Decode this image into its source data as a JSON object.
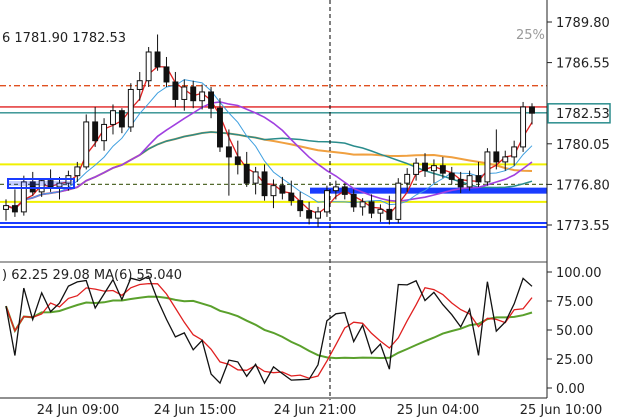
{
  "chart_data": [
    {
      "type": "candlestick",
      "title": "",
      "price_labels": [
        "1789.80",
        "1786.55",
        "1780.05",
        "1776.80",
        "1773.55"
      ],
      "price_values": [
        1789.8,
        1786.55,
        1780.05,
        1776.8,
        1773.55
      ],
      "ylim": [
        1772.6,
        1791.0
      ],
      "current_price": "1782.53",
      "current_price_value": 1782.53,
      "header_text": "6 1781.90 1782.53",
      "zoom_text": "25%",
      "x_labels": [
        "24 Jun 09:00",
        "24 Jun 15:00",
        "24 Jun 21:00",
        "25 Jun 04:00",
        "25 Jun 10:00"
      ],
      "bar_count": 60,
      "horizontal_lines": [
        {
          "value": 1783.0,
          "color": "#e02020",
          "style": "solid"
        },
        {
          "value": 1784.7,
          "color": "#e05020",
          "style": "dashdot"
        },
        {
          "value": 1782.53,
          "color": "#2a8c8c",
          "style": "solid"
        },
        {
          "value": 1778.4,
          "color": "#f0f000",
          "style": "solid"
        },
        {
          "value": 1776.8,
          "color": "#556b2f",
          "style": "dashed"
        },
        {
          "value": 1775.4,
          "color": "#f0f000",
          "style": "solid"
        },
        {
          "value": 1773.55,
          "color": "#1a3cff",
          "style": "double"
        }
      ],
      "ohlc": [
        [
          1774.8,
          1775.6,
          1773.9,
          1775.1
        ],
        [
          1775.1,
          1776.4,
          1774.2,
          1774.6
        ],
        [
          1774.6,
          1777.5,
          1774.3,
          1777.0
        ],
        [
          1777.0,
          1777.8,
          1775.9,
          1776.2
        ],
        [
          1776.2,
          1777.3,
          1775.8,
          1777.1
        ],
        [
          1777.1,
          1778.0,
          1776.2,
          1776.6
        ],
        [
          1776.6,
          1777.4,
          1775.6,
          1776.9
        ],
        [
          1776.9,
          1777.9,
          1776.3,
          1777.5
        ],
        [
          1777.5,
          1778.6,
          1777.0,
          1778.2
        ],
        [
          1778.2,
          1782.4,
          1778.0,
          1781.8
        ],
        [
          1781.8,
          1783.0,
          1779.8,
          1780.3
        ],
        [
          1780.3,
          1782.1,
          1779.5,
          1781.6
        ],
        [
          1781.6,
          1783.2,
          1780.8,
          1782.7
        ],
        [
          1782.7,
          1782.9,
          1780.9,
          1781.4
        ],
        [
          1781.4,
          1784.9,
          1781.0,
          1784.4
        ],
        [
          1784.4,
          1785.8,
          1783.5,
          1785.1
        ],
        [
          1785.1,
          1787.8,
          1784.6,
          1787.4
        ],
        [
          1787.4,
          1788.8,
          1785.9,
          1786.2
        ],
        [
          1786.2,
          1787.0,
          1784.6,
          1785.0
        ],
        [
          1785.0,
          1785.8,
          1783.0,
          1783.6
        ],
        [
          1783.6,
          1785.2,
          1782.7,
          1784.6
        ],
        [
          1784.6,
          1785.1,
          1782.9,
          1783.5
        ],
        [
          1783.5,
          1784.8,
          1782.8,
          1784.2
        ],
        [
          1784.2,
          1784.6,
          1782.1,
          1782.9
        ],
        [
          1782.9,
          1783.7,
          1779.4,
          1779.8
        ],
        [
          1779.8,
          1781.2,
          1775.9,
          1779.0
        ],
        [
          1779.0,
          1780.3,
          1777.6,
          1778.4
        ],
        [
          1778.4,
          1779.4,
          1776.6,
          1776.9
        ],
        [
          1776.9,
          1778.2,
          1776.0,
          1777.8
        ],
        [
          1777.8,
          1778.4,
          1775.5,
          1775.9
        ],
        [
          1775.9,
          1777.2,
          1774.9,
          1776.7
        ],
        [
          1776.7,
          1777.4,
          1775.6,
          1776.1
        ],
        [
          1776.1,
          1777.1,
          1775.1,
          1775.5
        ],
        [
          1775.5,
          1776.2,
          1774.2,
          1774.7
        ],
        [
          1774.7,
          1775.4,
          1773.6,
          1774.1
        ],
        [
          1774.1,
          1775.0,
          1773.4,
          1774.6
        ],
        [
          1774.6,
          1776.7,
          1774.2,
          1776.3
        ],
        [
          1776.3,
          1777.1,
          1775.6,
          1776.6
        ],
        [
          1776.6,
          1776.9,
          1775.6,
          1776.0
        ],
        [
          1776.0,
          1776.4,
          1774.6,
          1775.0
        ],
        [
          1775.0,
          1775.7,
          1774.3,
          1775.4
        ],
        [
          1775.4,
          1776.0,
          1774.1,
          1774.5
        ],
        [
          1774.5,
          1775.2,
          1773.8,
          1774.8
        ],
        [
          1774.8,
          1775.9,
          1773.6,
          1774.0
        ],
        [
          1774.0,
          1777.3,
          1773.7,
          1776.9
        ],
        [
          1776.9,
          1778.1,
          1776.2,
          1777.6
        ],
        [
          1777.6,
          1778.9,
          1777.1,
          1778.5
        ],
        [
          1778.5,
          1779.3,
          1777.4,
          1777.9
        ],
        [
          1777.9,
          1778.8,
          1776.9,
          1778.3
        ],
        [
          1778.3,
          1779.0,
          1777.3,
          1777.7
        ],
        [
          1777.7,
          1778.2,
          1776.8,
          1777.2
        ],
        [
          1777.2,
          1777.8,
          1776.1,
          1776.6
        ],
        [
          1776.6,
          1777.9,
          1776.3,
          1777.5
        ],
        [
          1777.5,
          1778.6,
          1776.6,
          1777.0
        ],
        [
          1777.0,
          1779.7,
          1776.7,
          1779.4
        ],
        [
          1779.4,
          1781.2,
          1778.0,
          1778.6
        ],
        [
          1778.6,
          1779.5,
          1777.9,
          1779.0
        ],
        [
          1779.0,
          1780.3,
          1778.3,
          1779.8
        ],
        [
          1779.8,
          1783.4,
          1779.4,
          1783.0
        ],
        [
          1783.0,
          1783.3,
          1781.6,
          1782.5
        ]
      ],
      "indicator": {
        "header_text": ") 62.25 29.08 MA(6) 55.040",
        "axis_labels": [
          "100.00",
          "75.00",
          "50.00",
          "25.00",
          "0.00"
        ],
        "axis_values": [
          100,
          75,
          50,
          25,
          0
        ],
        "ylim": [
          -5,
          105
        ]
      }
    }
  ]
}
